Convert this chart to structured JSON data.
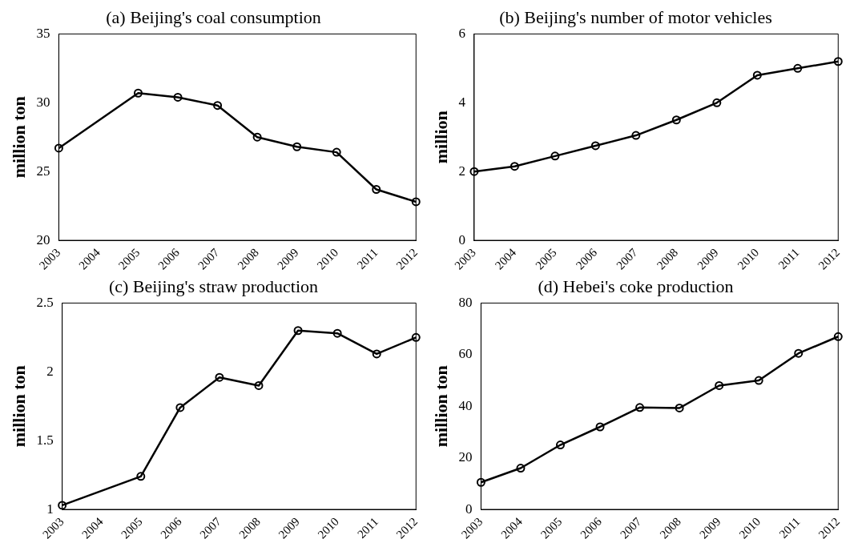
{
  "chart_data": [
    {
      "type": "line",
      "title": "(a) Beijing's coal consumption",
      "ylabel": "million ton",
      "categories": [
        "2003",
        "2004",
        "2005",
        "2006",
        "2007",
        "2008",
        "2009",
        "2010",
        "2011",
        "2012"
      ],
      "values": [
        26.7,
        null,
        30.7,
        30.4,
        29.8,
        27.5,
        26.8,
        26.4,
        23.7,
        22.8
      ],
      "color": "#000000",
      "ylim": [
        20,
        35
      ],
      "yticks": [
        20,
        25,
        30,
        35
      ],
      "marker": "circle"
    },
    {
      "type": "line",
      "title": "(b) Beijing's number of motor vehicles",
      "ylabel": "million",
      "categories": [
        "2003",
        "2004",
        "2005",
        "2006",
        "2007",
        "2008",
        "2009",
        "2010",
        "2011",
        "2012"
      ],
      "values": [
        2.0,
        2.15,
        2.45,
        2.75,
        3.05,
        3.5,
        4.0,
        4.8,
        5.0,
        5.2
      ],
      "color": "#000000",
      "ylim": [
        0,
        6
      ],
      "yticks": [
        0,
        2,
        4,
        6
      ],
      "marker": "circle"
    },
    {
      "type": "line",
      "title": "(c) Beijing's straw production",
      "ylabel": "million ton",
      "categories": [
        "2003",
        "2004",
        "2005",
        "2006",
        "2007",
        "2008",
        "2009",
        "2010",
        "2011",
        "2012"
      ],
      "values": [
        1.03,
        null,
        1.24,
        1.74,
        1.96,
        1.9,
        2.3,
        2.28,
        2.13,
        2.25
      ],
      "color": "#000000",
      "ylim": [
        1,
        2.5
      ],
      "yticks": [
        1,
        1.5,
        2,
        2.5
      ],
      "marker": "circle"
    },
    {
      "type": "line",
      "title": "(d) Hebei's coke production",
      "ylabel": "million ton",
      "categories": [
        "2003",
        "2004",
        "2005",
        "2006",
        "2007",
        "2008",
        "2009",
        "2010",
        "2011",
        "2012"
      ],
      "values": [
        10.5,
        16,
        25,
        32,
        39.5,
        39.3,
        48,
        50,
        60.5,
        67
      ],
      "color": "#000000",
      "ylim": [
        0,
        80
      ],
      "yticks": [
        0,
        20,
        40,
        60,
        80
      ],
      "marker": "circle"
    }
  ]
}
